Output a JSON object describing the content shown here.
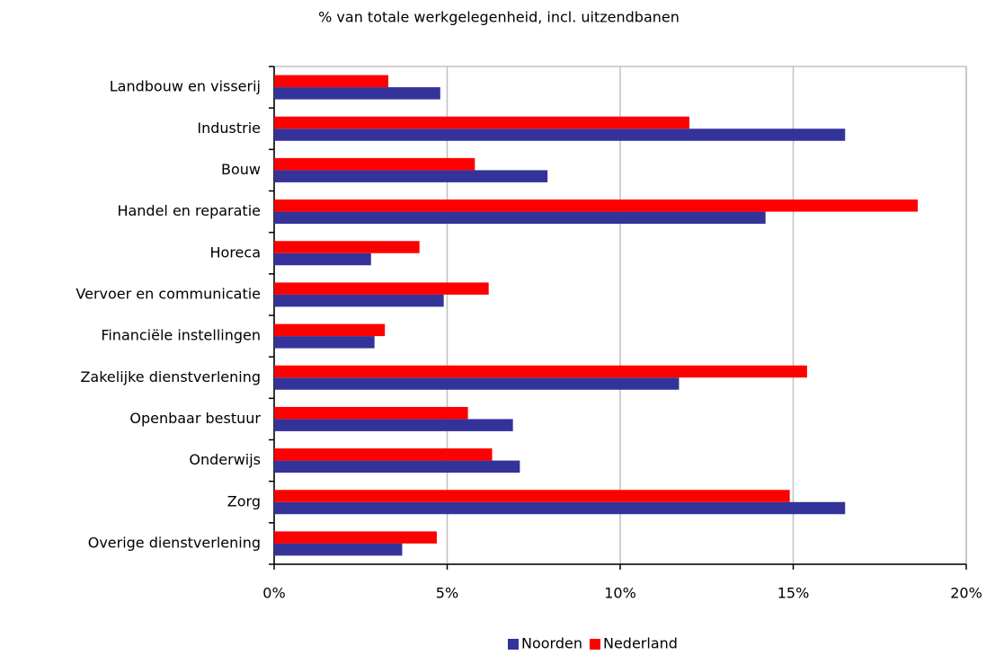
{
  "chart_data": {
    "type": "hbar",
    "title": "% van totale werkgelegenheid, incl. uitzendbanen",
    "categories": [
      "Landbouw en visserij",
      "Industrie",
      "Bouw",
      "Handel en reparatie",
      "Horeca",
      "Vervoer en communicatie",
      "Financiële instellingen",
      "Zakelijke dienstverlening",
      "Openbaar bestuur",
      "Onderwijs",
      "Zorg",
      "Overige dienstverlening"
    ],
    "series": [
      {
        "name": "Noorden",
        "color": "#333399",
        "values": [
          4.8,
          16.5,
          7.9,
          14.2,
          2.8,
          4.9,
          2.9,
          11.7,
          6.9,
          7.1,
          16.5,
          3.7
        ]
      },
      {
        "name": "Nederland",
        "color": "#ff0000",
        "values": [
          3.3,
          12.0,
          5.8,
          18.6,
          4.2,
          6.2,
          3.2,
          15.4,
          5.6,
          6.3,
          14.9,
          4.7
        ]
      }
    ],
    "xlim": [
      0,
      20
    ],
    "xticks": [
      {
        "value": 0,
        "label": "0%"
      },
      {
        "value": 5,
        "label": "5%"
      },
      {
        "value": 10,
        "label": "10%"
      },
      {
        "value": 15,
        "label": "15%"
      },
      {
        "value": 20,
        "label": "20%"
      }
    ],
    "grid": true,
    "legend": "bottom"
  }
}
